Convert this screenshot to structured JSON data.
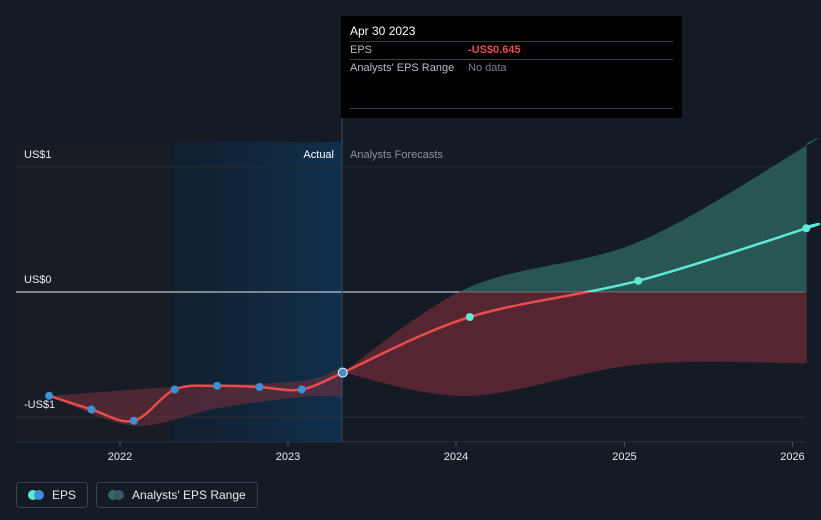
{
  "chart_data": {
    "type": "line",
    "xlabel": "",
    "ylabel": "",
    "x_ticks": [
      "2022",
      "2023",
      "2024",
      "2025",
      "2026"
    ],
    "y_ticks": [
      {
        "label": "US$1",
        "value": 1
      },
      {
        "label": "US$0",
        "value": 0
      },
      {
        "label": "-US$1",
        "value": -1
      }
    ],
    "ylim": [
      -1.2,
      1.2
    ],
    "xlim": [
      "2021-07-01",
      "2026-02-01"
    ],
    "regions": {
      "actual_label": "Actual",
      "forecast_label": "Analysts Forecasts",
      "divider_date": "2023-04-30"
    },
    "series": [
      {
        "name": "EPS",
        "color": "#e84c4c",
        "actual_points": [
          {
            "x": "2021-07-31",
            "y": -0.83
          },
          {
            "x": "2021-10-31",
            "y": -0.94
          },
          {
            "x": "2022-01-31",
            "y": -1.03
          },
          {
            "x": "2022-04-30",
            "y": -0.78
          },
          {
            "x": "2022-07-31",
            "y": -0.75
          },
          {
            "x": "2022-10-31",
            "y": -0.76
          },
          {
            "x": "2023-01-31",
            "y": -0.78
          },
          {
            "x": "2023-04-30",
            "y": -0.645
          }
        ],
        "forecast_points": [
          {
            "x": "2024-01-31",
            "y": -0.2
          },
          {
            "x": "2025-01-31",
            "y": 0.09
          },
          {
            "x": "2026-01-31",
            "y": 0.51
          }
        ]
      },
      {
        "name": "Analysts' EPS Range",
        "past_upper": [
          {
            "x": "2021-07-31",
            "y": -0.83
          },
          {
            "x": "2022-04-30",
            "y": -0.76
          },
          {
            "x": "2023-01-31",
            "y": -0.71
          },
          {
            "x": "2023-04-30",
            "y": -0.59
          }
        ],
        "past_lower": [
          {
            "x": "2021-07-31",
            "y": -0.83
          },
          {
            "x": "2022-01-31",
            "y": -1.07
          },
          {
            "x": "2022-07-31",
            "y": -0.93
          },
          {
            "x": "2023-01-31",
            "y": -0.84
          },
          {
            "x": "2023-04-30",
            "y": -0.84
          }
        ],
        "forecast_upper": [
          {
            "x": "2023-04-30",
            "y": -0.645
          },
          {
            "x": "2024-01-31",
            "y": 0.04
          },
          {
            "x": "2025-01-31",
            "y": 0.4
          },
          {
            "x": "2026-01-31",
            "y": 1.17
          }
        ],
        "forecast_lower": [
          {
            "x": "2023-04-30",
            "y": -0.645
          },
          {
            "x": "2024-01-31",
            "y": -0.83
          },
          {
            "x": "2025-01-31",
            "y": -0.58
          },
          {
            "x": "2026-01-31",
            "y": -0.57
          }
        ]
      }
    ]
  },
  "tooltip": {
    "date": "Apr 30 2023",
    "eps_label": "EPS",
    "eps_value": "-US$0.645",
    "range_label": "Analysts' EPS Range",
    "range_value": "No data"
  },
  "legend": {
    "eps_label": "EPS",
    "range_label": "Analysts' EPS Range"
  },
  "colors": {
    "background": "#151b24",
    "eps_actual": "#e84c4c",
    "eps_forecast_positive": "#5ee8d6",
    "range_positive": "#2f6b63",
    "range_negative": "#6b2a35",
    "actual_band": "#0f2c45",
    "marker": "#3d8fd8"
  }
}
